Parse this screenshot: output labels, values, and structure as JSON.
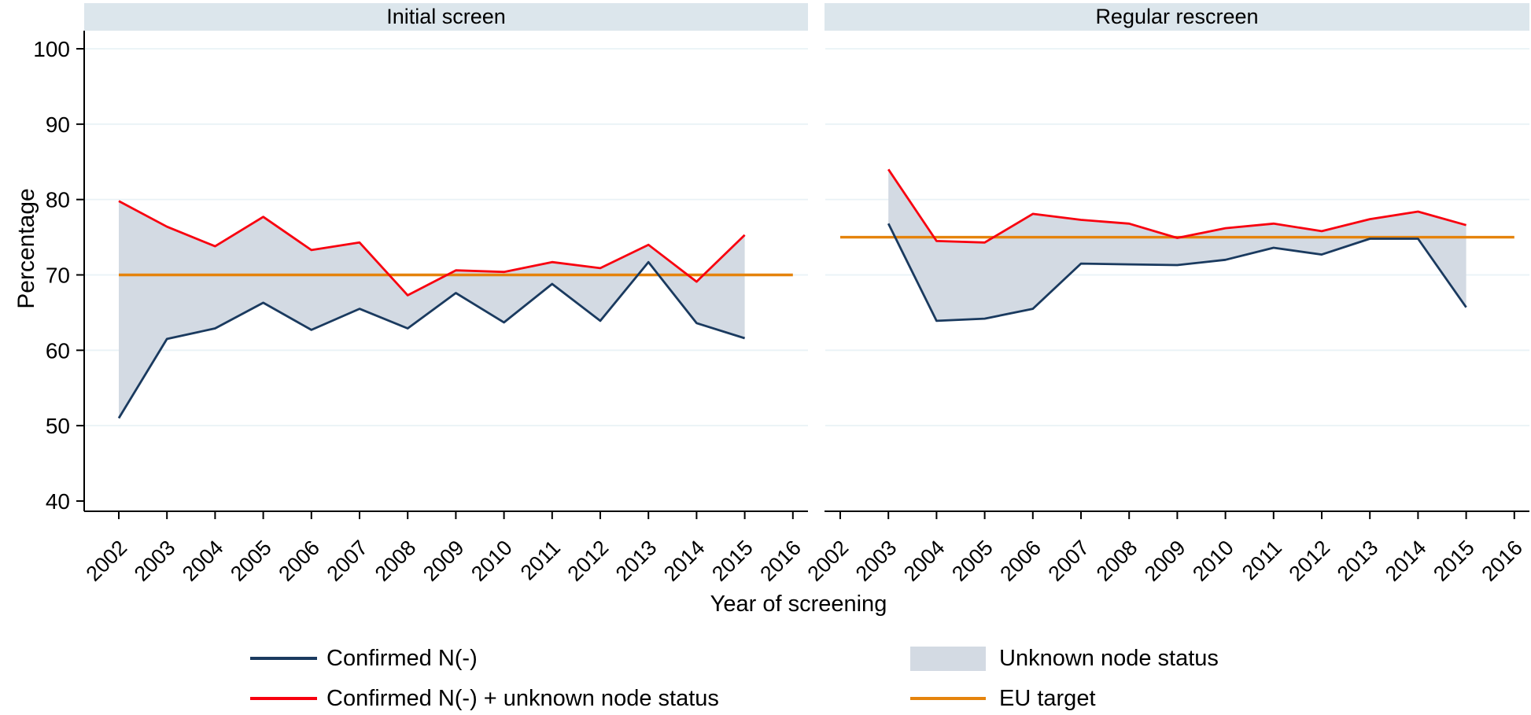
{
  "chart_data": {
    "type": "area",
    "title": "",
    "xlabel": "Year of screening",
    "ylabel": "Percentage",
    "ylim": [
      40,
      100
    ],
    "yticks": [
      100,
      90,
      80,
      70,
      60,
      50,
      40
    ],
    "gridline_values": [
      100,
      90,
      80,
      70,
      60,
      50
    ],
    "xticks": [
      2002,
      2003,
      2004,
      2005,
      2006,
      2007,
      2008,
      2009,
      2010,
      2011,
      2012,
      2013,
      2014,
      2015,
      2016
    ],
    "grid": true,
    "legend_position": "bottom",
    "panels": [
      {
        "title": "Initial screen",
        "eu_target": 70,
        "years": [
          2002,
          2003,
          2004,
          2005,
          2006,
          2007,
          2008,
          2009,
          2010,
          2011,
          2012,
          2013,
          2014,
          2015
        ],
        "series": [
          {
            "name": "Confirmed N(-)",
            "values": [
              51.0,
              61.5,
              62.9,
              66.3,
              62.7,
              65.5,
              62.9,
              67.6,
              63.7,
              68.8,
              63.9,
              71.7,
              63.6,
              61.6
            ]
          },
          {
            "name": "Confirmed N(-) + unknown node status",
            "values": [
              79.8,
              76.4,
              73.8,
              77.7,
              73.3,
              74.3,
              67.3,
              70.6,
              70.4,
              71.7,
              70.9,
              74.0,
              69.1,
              75.3
            ]
          }
        ]
      },
      {
        "title": "Regular rescreen",
        "eu_target": 75,
        "years": [
          2003,
          2004,
          2005,
          2006,
          2007,
          2008,
          2009,
          2010,
          2011,
          2012,
          2013,
          2014,
          2015
        ],
        "series": [
          {
            "name": "Confirmed N(-)",
            "values": [
              76.8,
              63.9,
              64.2,
              65.5,
              71.5,
              71.4,
              71.3,
              72.0,
              73.6,
              72.7,
              74.8,
              74.8,
              65.7
            ]
          },
          {
            "name": "Confirmed N(-) + unknown node status",
            "values": [
              84.0,
              74.5,
              74.3,
              78.1,
              77.3,
              76.8,
              74.9,
              76.2,
              76.8,
              75.8,
              77.4,
              78.4,
              76.6
            ]
          }
        ]
      }
    ],
    "legend": [
      {
        "label": "Confirmed N(-)",
        "swatch": "line",
        "color": "#1a3a5f"
      },
      {
        "label": "Confirmed N(-) + unknown node status",
        "swatch": "line",
        "color": "#f8000f"
      },
      {
        "label": "Unknown node status",
        "swatch": "area",
        "color": "#d3dae3"
      },
      {
        "label": "EU target",
        "swatch": "line",
        "color": "#e5830c"
      }
    ],
    "colors": {
      "confirmed_line": "#1a3a5f",
      "plus_unknown_line": "#f8000f",
      "target_line": "#e5830c",
      "area_fill": "#d3dae3",
      "gridline": "#e9f2f6",
      "header_band": "#dce6ec",
      "axis": "#000000"
    }
  }
}
